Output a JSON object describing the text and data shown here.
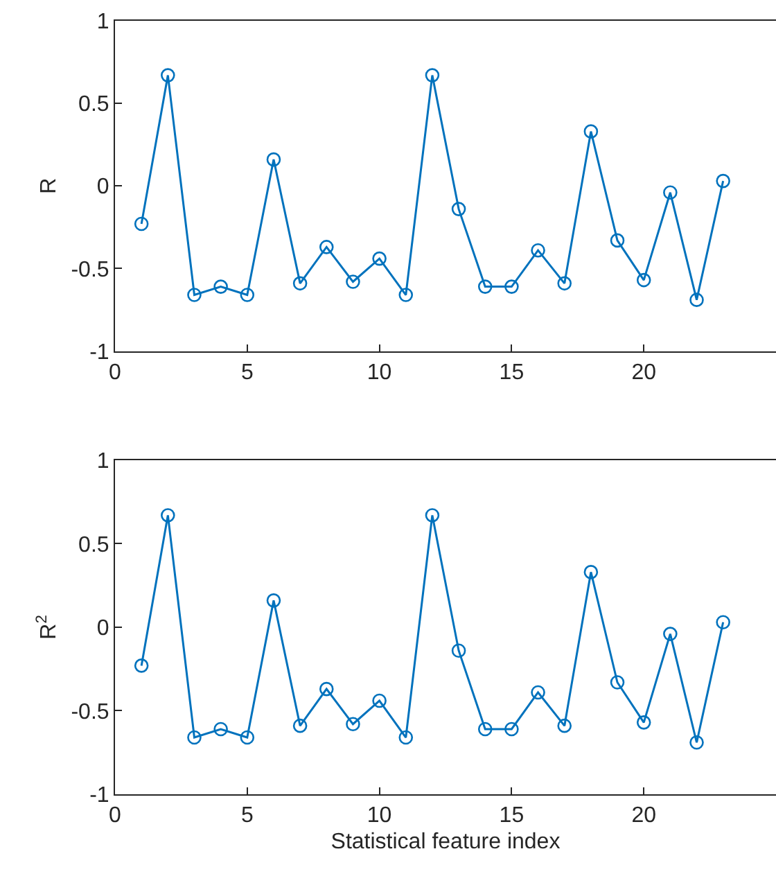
{
  "chart_data": [
    {
      "type": "line",
      "ylabel": "R",
      "x": [
        1,
        2,
        3,
        4,
        5,
        6,
        7,
        8,
        9,
        10,
        11,
        12,
        13,
        14,
        15,
        16,
        17,
        18,
        19,
        20,
        21,
        22,
        23
      ],
      "series": [
        {
          "color": "#0072bd",
          "values": [
            -0.23,
            0.67,
            -0.66,
            -0.61,
            -0.66,
            0.16,
            -0.59,
            -0.37,
            -0.58,
            -0.44,
            -0.66,
            0.67,
            -0.14,
            -0.61,
            -0.61,
            -0.39,
            -0.59,
            0.33,
            -0.33,
            -0.57,
            -0.04,
            -0.69,
            0.03
          ]
        }
      ],
      "xlim": [
        0,
        25
      ],
      "xticks": [
        0,
        5,
        10,
        15,
        20
      ],
      "ylim": [
        -1,
        1
      ],
      "yticks": [
        -1,
        -0.5,
        0,
        0.5,
        1
      ],
      "marker": "circle",
      "line_style": "solid"
    },
    {
      "type": "line",
      "ylabel": "R$^{2}$",
      "xlabel": "Statistical feature index",
      "x": [
        1,
        2,
        3,
        4,
        5,
        6,
        7,
        8,
        9,
        10,
        11,
        12,
        13,
        14,
        15,
        16,
        17,
        18,
        19,
        20,
        21,
        22,
        23
      ],
      "series": [
        {
          "color": "#0072bd",
          "values": [
            -0.23,
            0.67,
            -0.66,
            -0.61,
            -0.66,
            0.16,
            -0.59,
            -0.37,
            -0.58,
            -0.44,
            -0.66,
            0.67,
            -0.14,
            -0.61,
            -0.61,
            -0.39,
            -0.59,
            0.33,
            -0.33,
            -0.57,
            -0.04,
            -0.69,
            0.03
          ]
        }
      ],
      "xlim": [
        0,
        25
      ],
      "xticks": [
        0,
        5,
        10,
        15,
        20
      ],
      "ylim": [
        -1,
        1
      ],
      "yticks": [
        -1,
        -0.5,
        0,
        0.5,
        1
      ],
      "marker": "circle",
      "line_style": "solid"
    }
  ]
}
